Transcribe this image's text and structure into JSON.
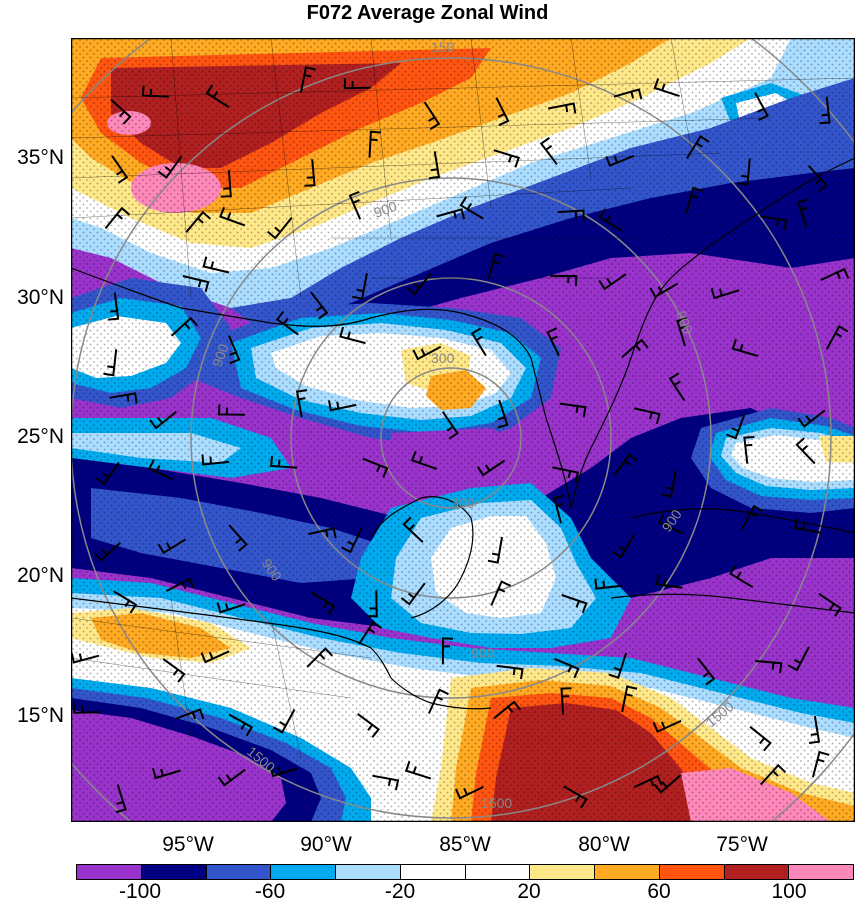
{
  "title": "F072 Average Zonal Wind",
  "colors": {
    "bins": [
      "#9933cc",
      "#000080",
      "#3355cc",
      "#00aaee",
      "#aaddff",
      "#ffffff",
      "#ffffff",
      "#ffe88a",
      "#ffaa22",
      "#ff5511",
      "#b02020",
      "#ff88bb"
    ],
    "ocean_base": "#9933cc",
    "coast": "#000000",
    "contour": "#888888",
    "barb": "#000000"
  },
  "lat_labels": [
    "35°N",
    "30°N",
    "25°N",
    "20°N",
    "15°N"
  ],
  "lon_labels": [
    "95°W",
    "90°W",
    "85°W",
    "80°W",
    "75°W"
  ],
  "colorbar_labels": [
    "-100",
    "-60",
    "-20",
    "20",
    "60",
    "100"
  ],
  "contour_labels": [
    "300",
    "300",
    "900",
    "900",
    "900",
    "900",
    "900",
    "1500",
    "1500",
    "1500",
    "150",
    "900"
  ]
}
